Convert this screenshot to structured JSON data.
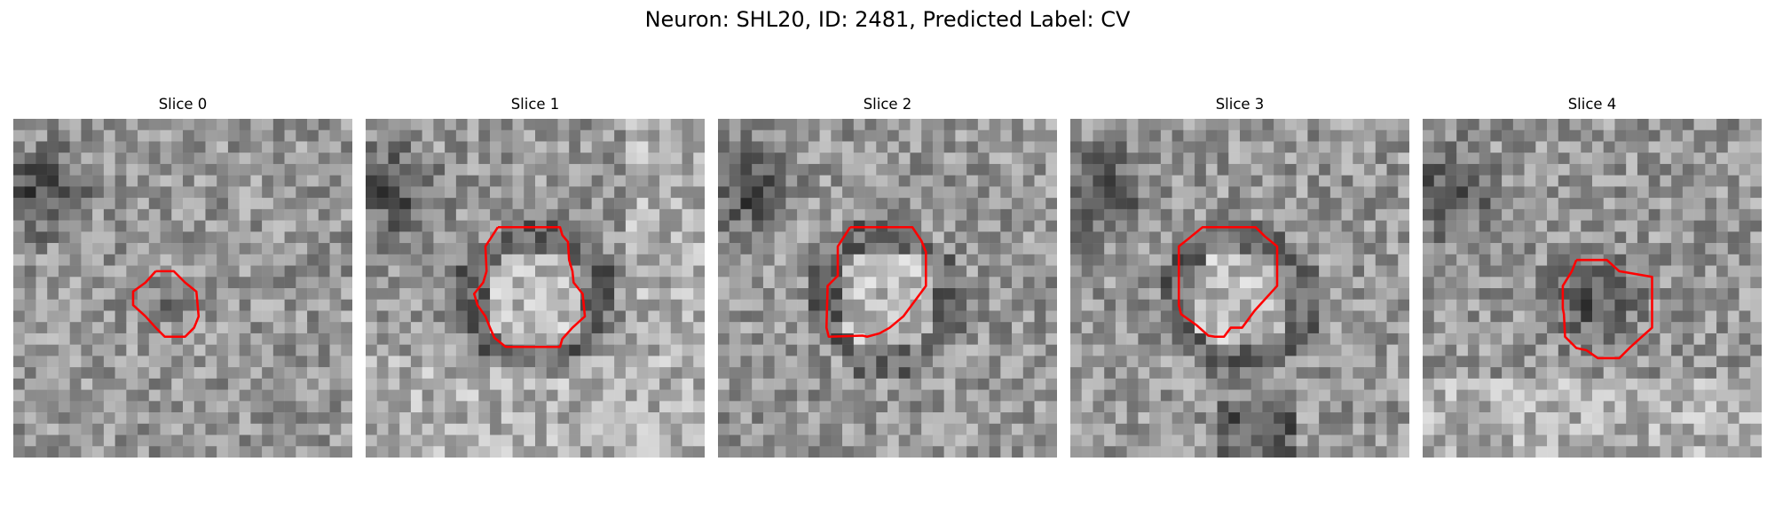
{
  "figure": {
    "title": "Neuron: SHL20, ID: 2481, Predicted Label: CV"
  },
  "contour_color": "#ff0000",
  "slices": [
    {
      "title": "Slice 0",
      "image": "grayscale-micrograph-patch"
    },
    {
      "title": "Slice 1",
      "image": "grayscale-micrograph-patch"
    },
    {
      "title": "Slice 2",
      "image": "grayscale-micrograph-patch"
    },
    {
      "title": "Slice 3",
      "image": "grayscale-micrograph-patch"
    },
    {
      "title": "Slice 4",
      "image": "grayscale-micrograph-patch"
    }
  ]
}
